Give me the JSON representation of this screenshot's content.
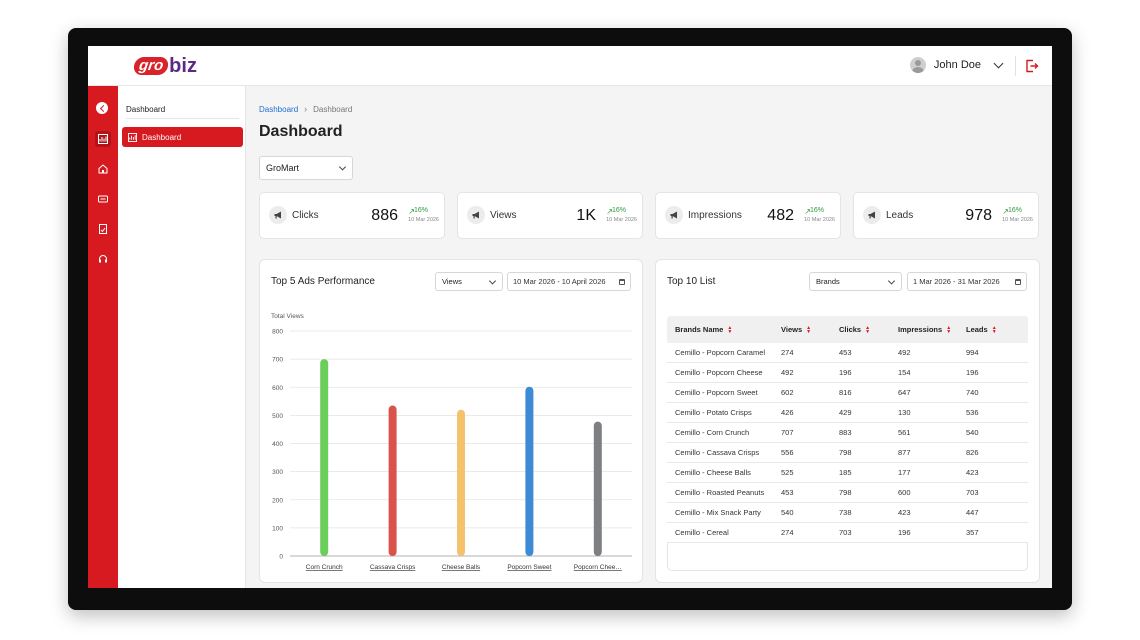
{
  "brand": {
    "logo_part1": "gro",
    "logo_part2": "biz"
  },
  "user": {
    "name": "John Doe"
  },
  "sidebar": {
    "section_title": "Dashboard",
    "active_item": "Dashboard"
  },
  "breadcrumb": {
    "root": "Dashboard",
    "current": "Dashboard"
  },
  "page": {
    "title": "Dashboard"
  },
  "store_select": {
    "value": "GroMart"
  },
  "kpis": [
    {
      "label": "Clicks",
      "value": "886",
      "change": "16%",
      "date": "10 Mar 2026"
    },
    {
      "label": "Views",
      "value": "1K",
      "change": "16%",
      "date": "10 Mar 2026"
    },
    {
      "label": "Impressions",
      "value": "482",
      "change": "16%",
      "date": "10 Mar 2026"
    },
    {
      "label": "Leads",
      "value": "978",
      "change": "16%",
      "date": "10 Mar 2026"
    }
  ],
  "ads_panel": {
    "title": "Top 5 Ads Performance",
    "metric_select": "Views",
    "date_range": "10 Mar 2026 - 10 April 2026"
  },
  "chart_data": {
    "type": "bar",
    "title": "Top 5 Ads Performance",
    "ylabel": "Total Views",
    "xlabel": "",
    "categories": [
      "Corn Crunch",
      "Cassava Crisps",
      "Cheese Balls",
      "Popcorn Sweet",
      "Popcorn Chee…"
    ],
    "values": [
      700,
      535,
      520,
      602,
      478
    ],
    "colors": [
      "#6cce5a",
      "#d9534a",
      "#f5c26b",
      "#3d8bd4",
      "#7d7f83"
    ],
    "ylim": [
      0,
      800
    ],
    "yticks": [
      "0",
      "100",
      "200",
      "300",
      "400",
      "500",
      "600",
      "700",
      "800"
    ],
    "grid": true
  },
  "top10": {
    "title": "Top 10 List",
    "category_select": "Brands",
    "date_range": "1 Mar 2026 - 31 Mar 2026",
    "columns": [
      "Brands Name",
      "Views",
      "Clicks",
      "Impressions",
      "Leads"
    ],
    "rows": [
      [
        "Cemillo - Popcorn Caramel",
        "274",
        "453",
        "492",
        "994"
      ],
      [
        "Cemillo - Popcorn Cheese",
        "492",
        "196",
        "154",
        "196"
      ],
      [
        "Cemillo - Popcorn Sweet",
        "602",
        "816",
        "647",
        "740"
      ],
      [
        "Cemillo - Potato Crisps",
        "426",
        "429",
        "130",
        "536"
      ],
      [
        "Cemillo - Corn Crunch",
        "707",
        "883",
        "561",
        "540"
      ],
      [
        "Cemillo - Cassava Crisps",
        "556",
        "798",
        "877",
        "826"
      ],
      [
        "Cemillo - Cheese Balls",
        "525",
        "185",
        "177",
        "423"
      ],
      [
        "Cemillo - Roasted Peanuts",
        "453",
        "798",
        "600",
        "703"
      ],
      [
        "Cemillo - Mix Snack Party",
        "540",
        "738",
        "423",
        "447"
      ],
      [
        "Cemillo - Cereal",
        "274",
        "703",
        "196",
        "357"
      ]
    ]
  },
  "colors": {
    "primary": "#d71920",
    "accent_link": "#1f6fd1",
    "positive": "#2e9b3c",
    "logo_purple": "#5b2a86"
  }
}
